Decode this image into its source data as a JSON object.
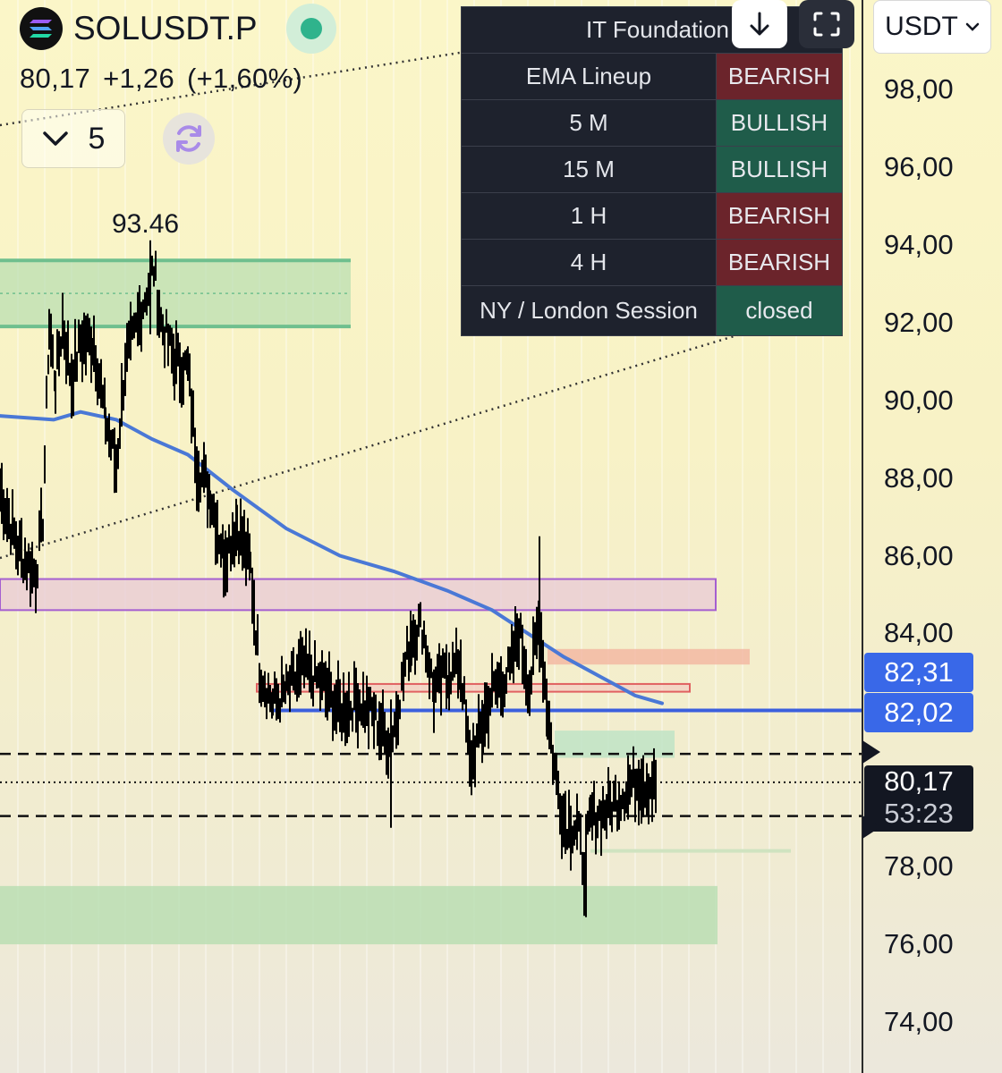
{
  "header": {
    "symbol": "SOLUSDT.P",
    "last_price": "80,17",
    "change": "+1,26",
    "change_pct": "(+1,60%)",
    "interval": "5",
    "interval_icon": "chevron-down-icon",
    "refresh_icon": "refresh-icon",
    "status_color": "#2fb38c"
  },
  "indicator_table": {
    "title": "IT Foundation",
    "rows": [
      {
        "label": "EMA Lineup",
        "state": "BEARISH",
        "color": "#6b242b"
      },
      {
        "label": "5 M",
        "state": "BULLISH",
        "color": "#1f5c4a"
      },
      {
        "label": "15 M",
        "state": "BULLISH",
        "color": "#1f5c4a"
      },
      {
        "label": "1 H",
        "state": "BEARISH",
        "color": "#6b242b"
      },
      {
        "label": "4 H",
        "state": "BEARISH",
        "color": "#6b242b"
      },
      {
        "label": "NY / London Session",
        "state": "closed",
        "color": "#1f5c4a"
      }
    ]
  },
  "toolbar": {
    "download_icon": "arrow-down-icon",
    "fullscreen_icon": "fullscreen-icon"
  },
  "price_axis": {
    "currency": "USDT",
    "ticks": [
      "98,00",
      "96,00",
      "94,00",
      "92,00",
      "90,00",
      "88,00",
      "86,00",
      "84,00",
      "78,00",
      "76,00",
      "74,00"
    ],
    "tags": {
      "ema_price": "82,31",
      "line_price": "82,02",
      "last_price": "80,17",
      "countdown": "53:23"
    }
  },
  "chart_data": {
    "type": "candlestick",
    "y_range": [
      73,
      100.5
    ],
    "annotations": {
      "swing_high": "93.46"
    },
    "colors": {
      "ema": "#4a78d6",
      "candles": "#000000",
      "zone_green": "#b6ddb0",
      "zone_purple": "#a55fd0",
      "zone_red": "#e06060",
      "hline_blue": "#3b5fdd"
    },
    "ema_line": [
      [
        0,
        89.6
      ],
      [
        60,
        89.5
      ],
      [
        90,
        89.7
      ],
      [
        130,
        89.5
      ],
      [
        170,
        89.0
      ],
      [
        210,
        88.6
      ],
      [
        260,
        87.7
      ],
      [
        320,
        86.7
      ],
      [
        380,
        86.0
      ],
      [
        440,
        85.6
      ],
      [
        500,
        85.1
      ],
      [
        550,
        84.6
      ],
      [
        590,
        84.0
      ],
      [
        630,
        83.4
      ],
      [
        670,
        82.9
      ],
      [
        710,
        82.4
      ],
      [
        740,
        82.2
      ]
    ],
    "price_path": [
      [
        0,
        87.7
      ],
      [
        20,
        86.2
      ],
      [
        40,
        85.5
      ],
      [
        48,
        87.0
      ],
      [
        55,
        91.9
      ],
      [
        62,
        90.5
      ],
      [
        70,
        92.0
      ],
      [
        80,
        90.5
      ],
      [
        90,
        91.5
      ],
      [
        105,
        91.5
      ],
      [
        118,
        89.5
      ],
      [
        130,
        88.3
      ],
      [
        140,
        91.0
      ],
      [
        150,
        91.6
      ],
      [
        160,
        92.5
      ],
      [
        172,
        93.4
      ],
      [
        180,
        92.0
      ],
      [
        195,
        91.0
      ],
      [
        210,
        90.8
      ],
      [
        220,
        88.4
      ],
      [
        235,
        87.6
      ],
      [
        250,
        86.0
      ],
      [
        265,
        86.8
      ],
      [
        280,
        85.7
      ],
      [
        290,
        83.1
      ],
      [
        305,
        82.2
      ],
      [
        320,
        82.5
      ],
      [
        340,
        83.1
      ],
      [
        360,
        82.7
      ],
      [
        380,
        82.0
      ],
      [
        400,
        82.3
      ],
      [
        420,
        81.8
      ],
      [
        437,
        81.1
      ],
      [
        445,
        82.2
      ],
      [
        460,
        84.0
      ],
      [
        472,
        84.2
      ],
      [
        485,
        82.5
      ],
      [
        500,
        83.0
      ],
      [
        515,
        83.2
      ],
      [
        525,
        80.6
      ],
      [
        540,
        81.7
      ],
      [
        550,
        82.5
      ],
      [
        570,
        83.0
      ],
      [
        580,
        84.1
      ],
      [
        592,
        82.6
      ],
      [
        603,
        84.4
      ],
      [
        612,
        82.0
      ],
      [
        620,
        80.5
      ],
      [
        630,
        79.2
      ],
      [
        645,
        79.0
      ],
      [
        653,
        78.0
      ],
      [
        660,
        79.2
      ],
      [
        680,
        79.5
      ],
      [
        700,
        80.0
      ],
      [
        715,
        80.3
      ],
      [
        725,
        80.1
      ],
      [
        735,
        80.1
      ]
    ],
    "wicks": [
      [
        168,
        93.46,
        91.7
      ],
      [
        437,
        82.3,
        79.0
      ],
      [
        603,
        86.5,
        83.0
      ],
      [
        655,
        79.0,
        76.7
      ],
      [
        525,
        81.5,
        80.1
      ]
    ],
    "levels": {
      "dashed_upper": 80.9,
      "dotted_last": 80.17,
      "dashed_lower": 79.3,
      "blue_line": 82.02
    }
  }
}
